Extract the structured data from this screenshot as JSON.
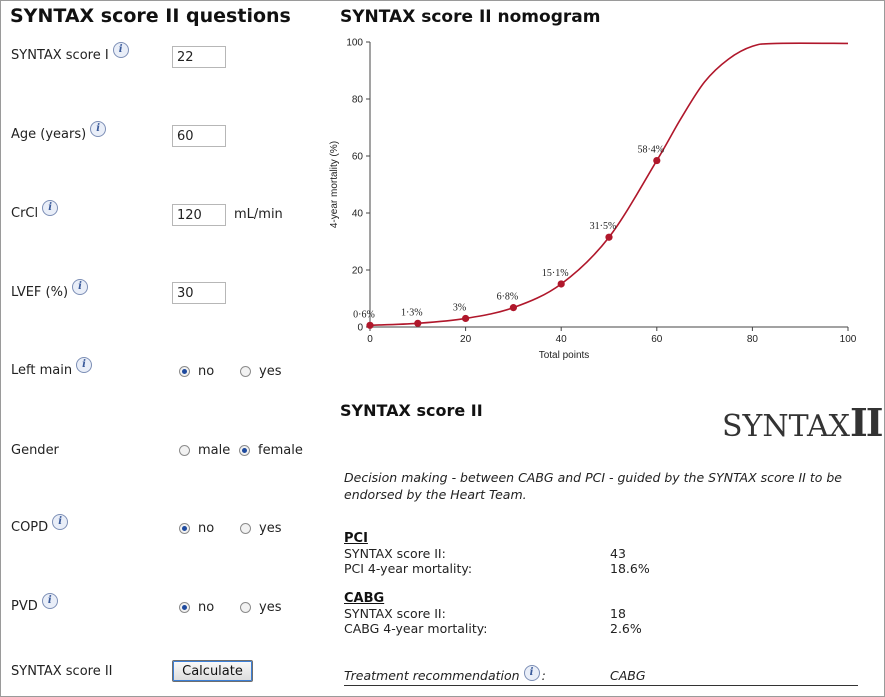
{
  "questions": {
    "title": "SYNTAX score II questions",
    "syntax_label": "SYNTAX score I",
    "syntax_value": "22",
    "age_label": "Age (years)",
    "age_value": "60",
    "crcl_label": "CrCl",
    "crcl_value": "120",
    "crcl_unit": "mL/min",
    "lvef_label": "LVEF (%)",
    "lvef_value": "30",
    "leftmain_label": "Left main",
    "gender_label": "Gender",
    "copd_label": "COPD",
    "pvd_label": "PVD",
    "opt_no": "no",
    "opt_yes": "yes",
    "opt_male": "male",
    "opt_female": "female",
    "selected": {
      "left_main": "no",
      "gender": "female",
      "copd": "no",
      "pvd": "no"
    },
    "syntax2_label": "SYNTAX score II",
    "calculate_label": "Calculate",
    "info_glyph": "i"
  },
  "nomogram": {
    "title": "SYNTAX score II nomogram"
  },
  "chart_data": {
    "type": "line",
    "title": "SYNTAX score II nomogram",
    "xlabel": "Total points",
    "ylabel": "4-year mortality (%)",
    "xlim": [
      0,
      100
    ],
    "ylim": [
      0,
      100
    ],
    "xticks": [
      0,
      20,
      40,
      60,
      80,
      100
    ],
    "yticks": [
      0,
      20,
      40,
      60,
      80,
      100
    ],
    "grid": false,
    "line_color": "#b0172b",
    "curve": [
      {
        "x": 0,
        "y": 0.6
      },
      {
        "x": 10,
        "y": 1.3
      },
      {
        "x": 20,
        "y": 3
      },
      {
        "x": 30,
        "y": 6.8
      },
      {
        "x": 40,
        "y": 15.1
      },
      {
        "x": 50,
        "y": 31.5
      },
      {
        "x": 60,
        "y": 58.4
      },
      {
        "x": 65,
        "y": 73
      },
      {
        "x": 70,
        "y": 86
      },
      {
        "x": 75,
        "y": 94
      },
      {
        "x": 80,
        "y": 98.5
      },
      {
        "x": 85,
        "y": 99.5
      },
      {
        "x": 100,
        "y": 99.5
      }
    ],
    "points": [
      {
        "x": 0,
        "y": 0.6,
        "label": "0·6%"
      },
      {
        "x": 10,
        "y": 1.3,
        "label": "1·3%"
      },
      {
        "x": 20,
        "y": 3,
        "label": "3%"
      },
      {
        "x": 30,
        "y": 6.8,
        "label": "6·8%"
      },
      {
        "x": 40,
        "y": 15.1,
        "label": "15·1%"
      },
      {
        "x": 50,
        "y": 31.5,
        "label": "31·5%"
      },
      {
        "x": 60,
        "y": 58.4,
        "label": "58·4%"
      }
    ]
  },
  "results": {
    "title": "SYNTAX score II",
    "logo_text": "SYNTAX",
    "logo_numeral": "II",
    "decision_text": "Decision making - between CABG and PCI - guided by the SYNTAX score II to be endorsed by the Heart Team.",
    "pci": {
      "heading": "PCI",
      "score_label": "SYNTAX score II:",
      "score_value": "43",
      "mortality_label": "PCI 4-year mortality:",
      "mortality_value": "18.6%"
    },
    "cabg": {
      "heading": "CABG",
      "score_label": "SYNTAX score II:",
      "score_value": "18",
      "mortality_label": "CABG 4-year mortality:",
      "mortality_value": "2.6%"
    },
    "recommendation_label": "Treatment recommendation",
    "recommendation_colon": ":",
    "recommendation_value": "CABG"
  }
}
